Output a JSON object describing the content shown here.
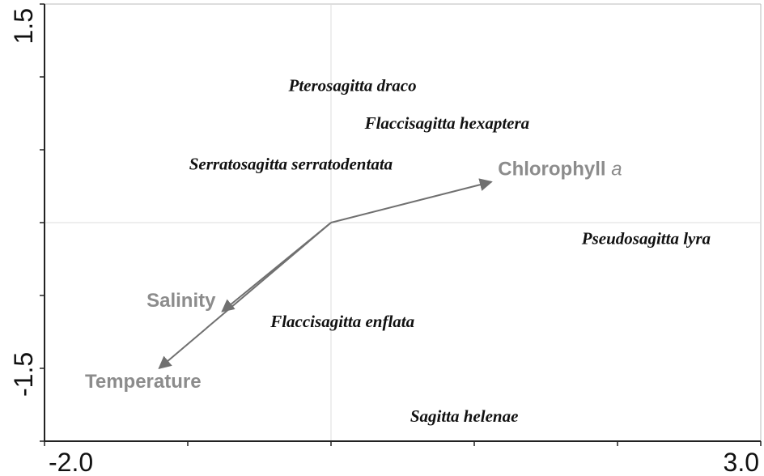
{
  "chart_data": {
    "type": "biplot",
    "xlim": [
      -2,
      3
    ],
    "xticks": [
      {
        "value": -2,
        "label": "-2.0"
      },
      {
        "value": 3,
        "label": "3.0"
      }
    ],
    "xminorticks": [
      -1,
      0,
      1,
      2
    ],
    "ylim": [
      -1.5,
      1.5
    ],
    "yticks": [
      -1.5,
      1.5
    ],
    "yminorticks": [
      -1,
      -0.5,
      0,
      0.5,
      1
    ],
    "arrow_color": "#707070",
    "grid_color": "#dddddd",
    "vectors": [
      {
        "name": "Chlorophyll",
        "name_italic": "a",
        "x": 1.12,
        "y": 0.28
      },
      {
        "name": "Salinity",
        "x": -0.76,
        "y": -0.61
      },
      {
        "name": "Temperature",
        "x": -1.2,
        "y": -1.0
      }
    ],
    "species": [
      {
        "name": "Pterosagitta draco",
        "x": 0.15,
        "y": 0.93
      },
      {
        "name": "Flaccisagitta hexaptera",
        "x": 0.81,
        "y": 0.67
      },
      {
        "name": "Serratosagitta serratodentata",
        "x": -0.28,
        "y": 0.39
      },
      {
        "name": "Pseudosagitta lyra",
        "x": 2.2,
        "y": -0.12
      },
      {
        "name": "Flaccisagitta enflata",
        "x": 0.08,
        "y": -0.69
      },
      {
        "name": "Sagitta helenae",
        "x": 0.93,
        "y": -1.34
      }
    ]
  }
}
